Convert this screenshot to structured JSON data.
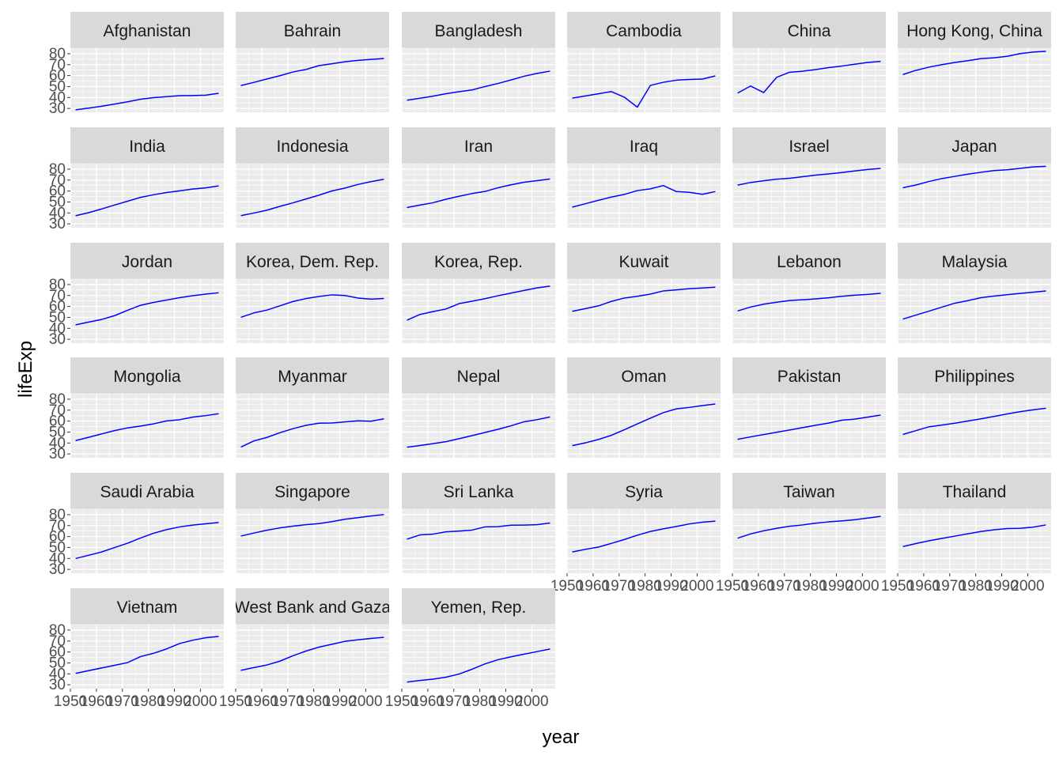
{
  "chart_data": {
    "type": "line",
    "facet": "country",
    "xlabel": "year",
    "ylabel": "lifeExp",
    "x": [
      1952,
      1957,
      1962,
      1967,
      1972,
      1977,
      1982,
      1987,
      1992,
      1997,
      2002,
      2007
    ],
    "xlim": [
      1950,
      2009
    ],
    "ylim": [
      26.5,
      85
    ],
    "x_ticks": [
      1950,
      1960,
      1970,
      1980,
      1990,
      2000
    ],
    "y_ticks": [
      30,
      40,
      50,
      60,
      70,
      80
    ],
    "grid": true,
    "line_color": "#0000ff",
    "panel_bg": "#ebebeb",
    "strip_bg": "#d9d9d9",
    "series": [
      {
        "name": "Afghanistan",
        "values": [
          28.8,
          30.3,
          32.0,
          34.0,
          36.1,
          38.4,
          39.9,
          40.8,
          41.7,
          41.8,
          42.1,
          43.8
        ]
      },
      {
        "name": "Bahrain",
        "values": [
          50.9,
          53.8,
          56.9,
          59.9,
          63.3,
          65.6,
          69.1,
          70.8,
          72.6,
          73.9,
          74.8,
          75.6
        ]
      },
      {
        "name": "Bangladesh",
        "values": [
          37.5,
          39.3,
          41.2,
          43.5,
          45.3,
          46.9,
          50.0,
          52.8,
          56.0,
          59.4,
          62.0,
          64.1
        ]
      },
      {
        "name": "Cambodia",
        "values": [
          39.4,
          41.4,
          43.4,
          45.4,
          40.3,
          31.2,
          51.0,
          53.9,
          55.8,
          56.5,
          56.8,
          59.7
        ]
      },
      {
        "name": "China",
        "values": [
          44.0,
          50.5,
          44.5,
          58.4,
          63.1,
          64.0,
          65.5,
          67.3,
          68.7,
          70.4,
          72.0,
          73.0
        ]
      },
      {
        "name": "Hong Kong, China",
        "values": [
          61.0,
          64.8,
          67.7,
          70.0,
          72.0,
          73.6,
          75.5,
          76.2,
          77.6,
          80.0,
          81.5,
          82.2
        ]
      },
      {
        "name": "India",
        "values": [
          37.4,
          40.2,
          43.6,
          47.2,
          50.7,
          54.2,
          56.6,
          58.6,
          60.2,
          61.8,
          62.9,
          64.7
        ]
      },
      {
        "name": "Indonesia",
        "values": [
          37.5,
          39.9,
          42.5,
          46.0,
          49.2,
          52.7,
          56.2,
          60.1,
          62.7,
          66.0,
          68.6,
          70.7
        ]
      },
      {
        "name": "Iran",
        "values": [
          44.9,
          47.2,
          49.3,
          52.5,
          55.2,
          57.7,
          59.6,
          63.0,
          65.7,
          68.0,
          69.5,
          71.0
        ]
      },
      {
        "name": "Iraq",
        "values": [
          45.3,
          48.4,
          51.5,
          54.5,
          56.9,
          60.4,
          62.0,
          65.0,
          59.5,
          58.8,
          57.0,
          59.5
        ]
      },
      {
        "name": "Israel",
        "values": [
          65.4,
          67.8,
          69.4,
          70.8,
          71.6,
          73.1,
          74.5,
          75.6,
          76.9,
          78.3,
          79.7,
          80.7
        ]
      },
      {
        "name": "Japan",
        "values": [
          63.0,
          65.5,
          68.7,
          71.4,
          73.4,
          75.4,
          77.1,
          78.7,
          79.4,
          80.7,
          82.0,
          82.6
        ]
      },
      {
        "name": "Jordan",
        "values": [
          43.2,
          45.7,
          48.1,
          51.6,
          56.5,
          61.1,
          63.7,
          65.9,
          68.0,
          69.8,
          71.3,
          72.5
        ]
      },
      {
        "name": "Korea, Dem. Rep.",
        "values": [
          50.1,
          54.1,
          56.7,
          60.6,
          64.5,
          67.2,
          69.1,
          70.6,
          70.0,
          67.7,
          66.7,
          67.3
        ]
      },
      {
        "name": "Korea, Rep.",
        "values": [
          47.5,
          52.7,
          55.3,
          57.7,
          62.6,
          64.8,
          67.1,
          69.8,
          72.2,
          74.6,
          77.0,
          78.6
        ]
      },
      {
        "name": "Kuwait",
        "values": [
          55.6,
          58.0,
          60.5,
          64.6,
          67.7,
          69.3,
          71.3,
          74.2,
          75.2,
          76.2,
          76.9,
          77.6
        ]
      },
      {
        "name": "Lebanon",
        "values": [
          55.9,
          59.5,
          62.1,
          63.9,
          65.4,
          66.1,
          66.9,
          67.9,
          69.3,
          70.3,
          71.0,
          72.0
        ]
      },
      {
        "name": "Malaysia",
        "values": [
          48.5,
          52.1,
          55.7,
          59.4,
          63.0,
          65.3,
          68.0,
          69.5,
          70.7,
          71.9,
          73.0,
          74.2
        ]
      },
      {
        "name": "Mongolia",
        "values": [
          42.2,
          45.2,
          48.3,
          51.3,
          53.8,
          55.5,
          57.5,
          60.2,
          61.3,
          63.6,
          65.0,
          66.8
        ]
      },
      {
        "name": "Myanmar",
        "values": [
          36.3,
          41.9,
          45.1,
          49.4,
          53.1,
          56.1,
          58.1,
          58.3,
          59.3,
          60.3,
          59.9,
          62.1
        ]
      },
      {
        "name": "Nepal",
        "values": [
          36.2,
          37.7,
          39.4,
          41.2,
          43.9,
          46.7,
          49.6,
          52.5,
          55.7,
          59.4,
          61.3,
          63.8
        ]
      },
      {
        "name": "Oman",
        "values": [
          37.6,
          40.1,
          43.2,
          47.0,
          52.1,
          57.4,
          62.7,
          67.7,
          71.2,
          72.5,
          74.2,
          75.6
        ]
      },
      {
        "name": "Pakistan",
        "values": [
          43.4,
          45.6,
          47.7,
          49.8,
          51.9,
          54.0,
          56.2,
          58.2,
          60.8,
          61.8,
          63.6,
          65.5
        ]
      },
      {
        "name": "Philippines",
        "values": [
          47.8,
          51.3,
          54.8,
          56.4,
          58.1,
          60.1,
          62.1,
          64.2,
          66.5,
          68.6,
          70.3,
          71.7
        ]
      },
      {
        "name": "Saudi Arabia",
        "values": [
          39.9,
          42.9,
          45.9,
          49.9,
          53.9,
          58.7,
          63.0,
          66.3,
          68.8,
          70.5,
          71.6,
          72.8
        ]
      },
      {
        "name": "Singapore",
        "values": [
          60.4,
          63.2,
          65.8,
          67.9,
          69.5,
          70.8,
          71.8,
          73.6,
          75.8,
          77.2,
          78.8,
          80.0
        ]
      },
      {
        "name": "Sri Lanka",
        "values": [
          57.6,
          61.5,
          62.2,
          64.3,
          65.0,
          65.9,
          68.8,
          69.0,
          70.4,
          70.5,
          70.8,
          72.4
        ]
      },
      {
        "name": "Syria",
        "values": [
          45.9,
          48.3,
          50.3,
          53.7,
          57.3,
          61.2,
          64.6,
          67.0,
          69.2,
          71.5,
          73.1,
          74.1
        ]
      },
      {
        "name": "Taiwan",
        "values": [
          58.5,
          62.4,
          65.2,
          67.5,
          69.4,
          70.6,
          72.2,
          73.4,
          74.3,
          75.3,
          76.9,
          78.4
        ]
      },
      {
        "name": "Thailand",
        "values": [
          50.8,
          53.6,
          56.1,
          58.3,
          60.4,
          62.5,
          64.6,
          66.1,
          67.3,
          67.5,
          68.6,
          70.6
        ]
      },
      {
        "name": "Vietnam",
        "values": [
          40.4,
          42.9,
          45.4,
          47.8,
          50.3,
          55.8,
          58.8,
          62.8,
          67.7,
          70.7,
          73.0,
          74.2
        ]
      },
      {
        "name": "West Bank and Gaza",
        "values": [
          43.2,
          45.7,
          48.1,
          51.6,
          56.5,
          60.8,
          64.4,
          67.0,
          69.7,
          71.1,
          72.4,
          73.4
        ]
      },
      {
        "name": "Yemen, Rep.",
        "values": [
          32.5,
          34.0,
          35.2,
          37.0,
          39.8,
          44.2,
          49.1,
          52.9,
          55.6,
          58.0,
          60.3,
          62.7
        ]
      }
    ]
  }
}
